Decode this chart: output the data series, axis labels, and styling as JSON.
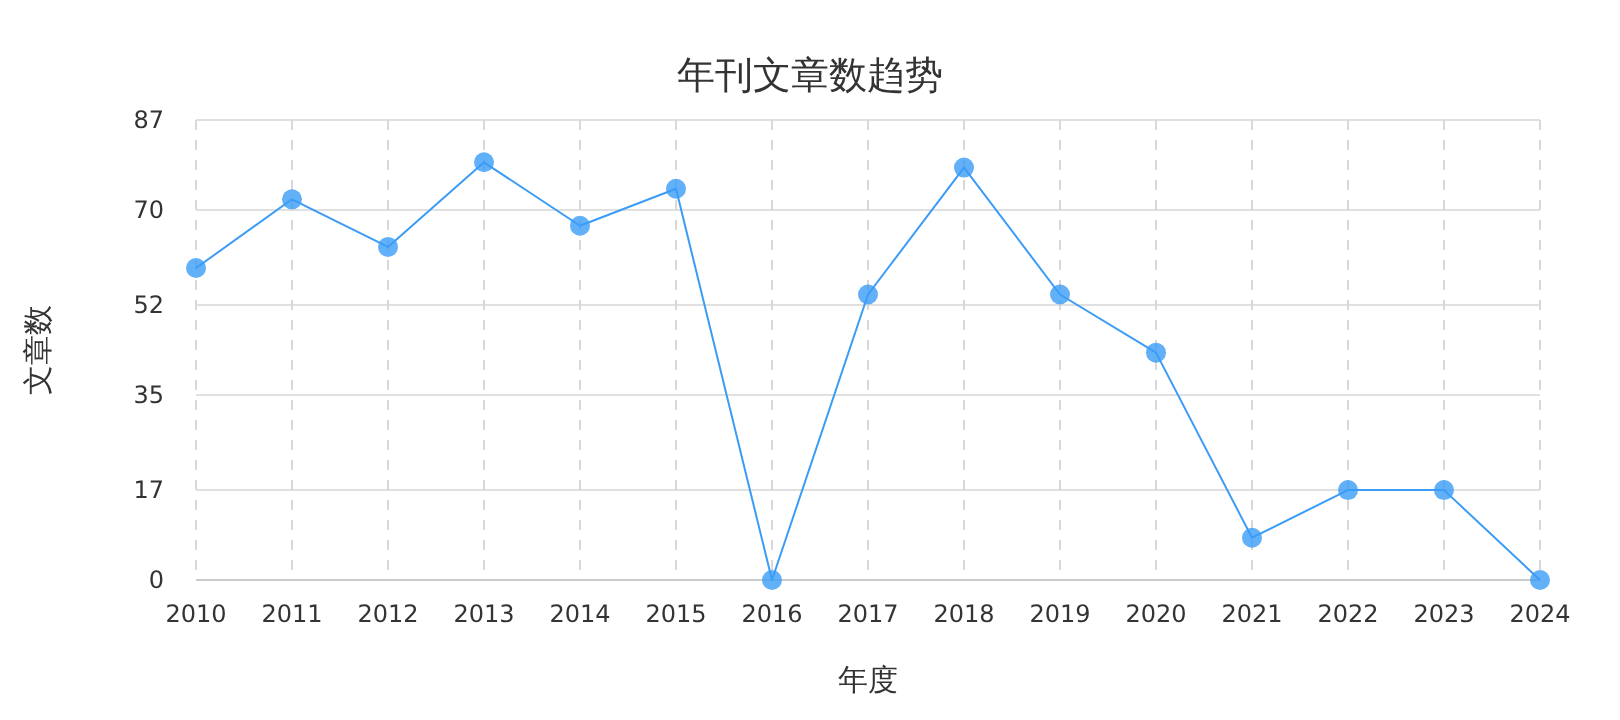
{
  "chart_data": {
    "type": "line",
    "title": "年刊文章数趋势",
    "xlabel": "年度",
    "ylabel": "文章数",
    "categories": [
      "2010",
      "2011",
      "2012",
      "2013",
      "2014",
      "2015",
      "2016",
      "2017",
      "2018",
      "2019",
      "2020",
      "2021",
      "2022",
      "2023",
      "2024"
    ],
    "series": [
      {
        "color": "#3b9cf6",
        "values": [
          59,
          72,
          63,
          79,
          67,
          74,
          0,
          54,
          78,
          54,
          43,
          8,
          17,
          17,
          0
        ]
      }
    ],
    "ylim": [
      0,
      87
    ],
    "yticks": [
      0,
      17,
      35,
      52,
      70,
      87
    ],
    "grid": true,
    "marker": "circle",
    "line_style": "solid"
  }
}
